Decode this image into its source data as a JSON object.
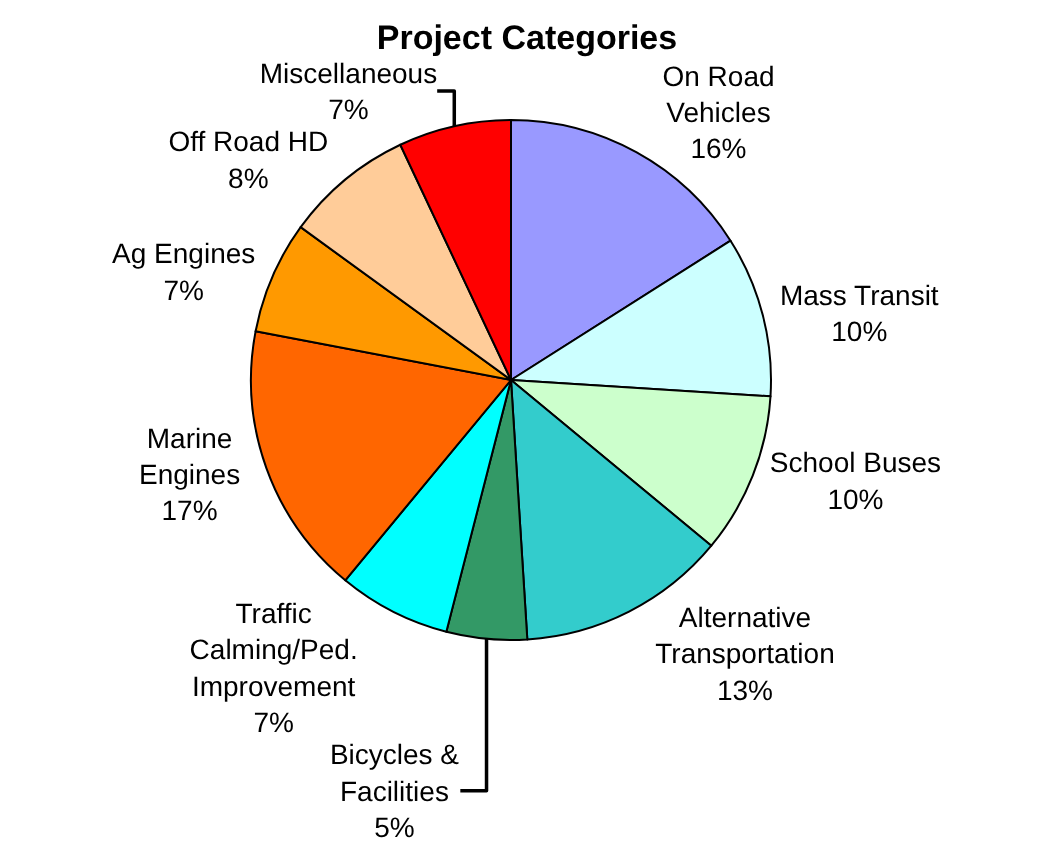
{
  "chart_data": {
    "type": "pie",
    "title": "Project Categories",
    "categories": [
      "On Road Vehicles",
      "Mass Transit",
      "School Buses",
      "Alternative Transportation",
      "Bicycles & Facilities",
      "Traffic Calming/Ped. Improvement",
      "Marine Engines",
      "Ag Engines",
      "Off Road HD",
      "Miscellaneous"
    ],
    "values": [
      16,
      10,
      10,
      13,
      5,
      7,
      17,
      7,
      8,
      7
    ],
    "value_labels": [
      "16%",
      "10%",
      "10%",
      "13%",
      "5%",
      "7%",
      "17%",
      "7%",
      "8%",
      "7%"
    ],
    "colors": [
      "#9999ff",
      "#ccffff",
      "#ccffcc",
      "#33cccc",
      "#339966",
      "#00ffff",
      "#ff6600",
      "#ff9900",
      "#ffcc99",
      "#ff0000"
    ]
  }
}
